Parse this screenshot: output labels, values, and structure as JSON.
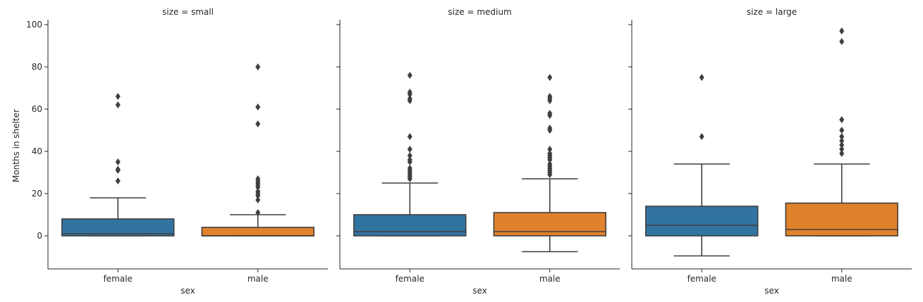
{
  "figure": {
    "ylabel": "Months in shelter",
    "xlabel": "sex"
  },
  "colors": {
    "female": "#3274a1",
    "male": "#e1812c",
    "line": "#3f3f3f",
    "axis": "#262626"
  },
  "chart_data": [
    {
      "type": "box",
      "title": "size = small",
      "xlabel": "sex",
      "ylabel": "Months in shelter",
      "categories": [
        "female",
        "male"
      ],
      "ylim": [
        -15,
        102
      ],
      "yticks": [
        0,
        20,
        40,
        60,
        80,
        100
      ],
      "boxes": [
        {
          "category": "female",
          "whislo": 0,
          "q1": 0,
          "median": 1,
          "q3": 8,
          "whishi": 18,
          "fliers": [
            26,
            31,
            31.5,
            35,
            62,
            66
          ]
        },
        {
          "category": "male",
          "whislo": 0,
          "q1": 0,
          "median": 0,
          "q3": 4,
          "whishi": 10,
          "fliers": [
            11,
            17,
            19,
            20,
            21,
            23,
            24,
            25,
            26,
            27,
            53,
            61,
            80
          ]
        }
      ]
    },
    {
      "type": "box",
      "title": "size = medium",
      "xlabel": "sex",
      "ylabel": "",
      "categories": [
        "female",
        "male"
      ],
      "ylim": [
        -15,
        102
      ],
      "yticks": [
        0,
        20,
        40,
        60,
        80,
        100
      ],
      "boxes": [
        {
          "category": "female",
          "whislo": 0,
          "q1": 0,
          "median": 2,
          "q3": 10,
          "whishi": 25,
          "fliers": [
            27,
            28,
            29,
            30,
            31,
            32,
            35,
            36,
            38,
            41,
            47,
            64,
            65,
            67,
            68,
            76
          ]
        },
        {
          "category": "male",
          "whislo": -7.5,
          "q1": 0,
          "median": 2,
          "q3": 11,
          "whishi": 27,
          "fliers": [
            29,
            30,
            31,
            32,
            33,
            34,
            36,
            37,
            38,
            39,
            41,
            50,
            51,
            57,
            58,
            64,
            65,
            66,
            75
          ]
        }
      ]
    },
    {
      "type": "box",
      "title": "size = large",
      "xlabel": "sex",
      "ylabel": "",
      "categories": [
        "female",
        "male"
      ],
      "ylim": [
        -15,
        102
      ],
      "yticks": [
        0,
        20,
        40,
        60,
        80,
        100
      ],
      "boxes": [
        {
          "category": "female",
          "whislo": -9.5,
          "q1": 0,
          "median": 5,
          "q3": 14,
          "whishi": 34,
          "fliers": [
            47,
            75
          ]
        },
        {
          "category": "male",
          "whislo": 0,
          "q1": 0,
          "median": 3,
          "q3": 15.5,
          "whishi": 34,
          "fliers": [
            39,
            41,
            43,
            45,
            47,
            50,
            55,
            92,
            97
          ]
        }
      ]
    }
  ]
}
